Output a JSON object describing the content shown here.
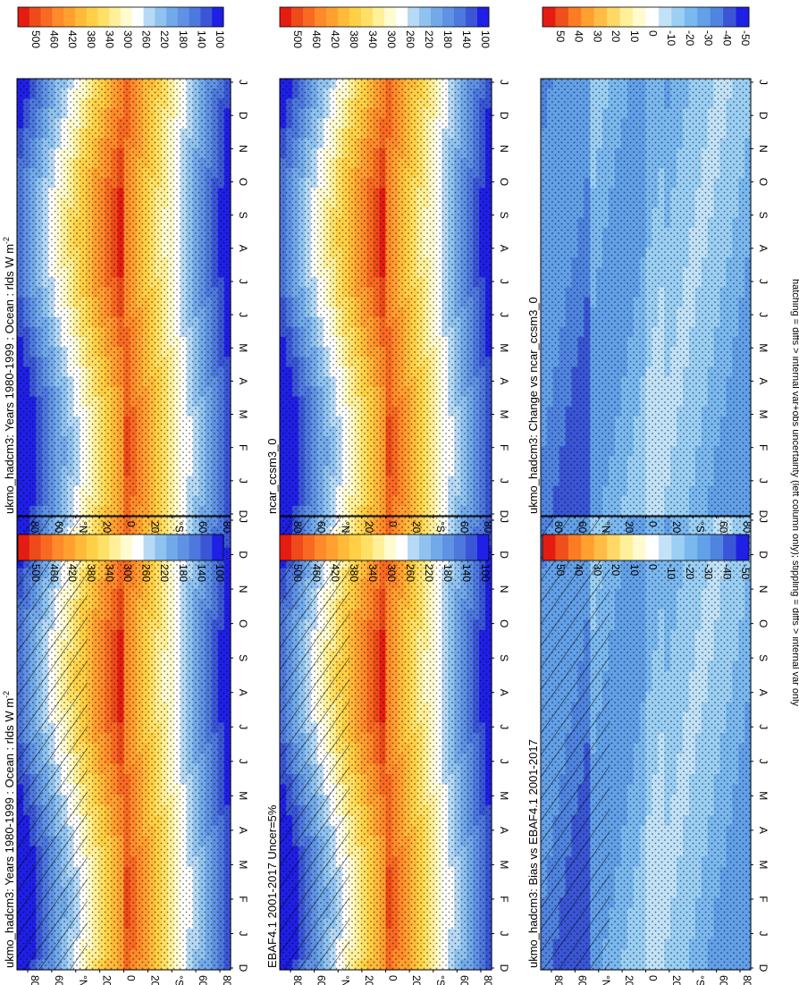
{
  "figure": {
    "footnote": "hatching = diffs > internal var+obs uncertainty (left column only); stippling = diffs > internal var only"
  },
  "palettes": {
    "abs": [
      "#1f1fe6",
      "#3a56d6",
      "#4d78dd",
      "#5f92e3",
      "#72a9e9",
      "#8fc2ef",
      "#b6d9f5",
      "#ffffff",
      "#fffbd0",
      "#fff099",
      "#ffe066",
      "#ffd045",
      "#ffba3a",
      "#ffa030",
      "#ff8a2a",
      "#f86a22",
      "#ee4a1a",
      "#e51c12"
    ],
    "diff": [
      "#1f1fe6",
      "#3a56d6",
      "#4f84e0",
      "#62a0e8",
      "#7ab8ef",
      "#9bcff4",
      "#c2e2f8",
      "#ffffff",
      "#fffbd0",
      "#fff099",
      "#ffd866",
      "#ffbd45",
      "#ffa030",
      "#fb7c25",
      "#ef501b",
      "#e51c12"
    ]
  },
  "panels": [
    {
      "id": "model-2100-ish",
      "title": "ukmo_hadcm3: Years 1980-1999 : Ocean : rlds W m",
      "title_sup": "-2",
      "kind": "abs",
      "hatch": true,
      "colorbar_ticks": [
        "500",
        "460",
        "420",
        "380",
        "340",
        "300",
        "260",
        "220",
        "180",
        "140",
        "100"
      ]
    },
    {
      "id": "obs",
      "title": "EBAF4.1 2001-2017 Uncer=5%",
      "title_sup": "",
      "kind": "abs",
      "hatch": true,
      "colorbar_ticks": [
        "500",
        "460",
        "420",
        "380",
        "340",
        "300",
        "260",
        "220",
        "180",
        "140",
        "100"
      ]
    },
    {
      "id": "bias",
      "title": "ukmo_hadcm3: Bias vs EBAF4.1 2001-2017",
      "title_sup": "",
      "kind": "diff",
      "hatch": true,
      "colorbar_ticks": [
        "50",
        "40",
        "30",
        "20",
        "10",
        "0",
        "-10",
        "-20",
        "-30",
        "-40",
        "-50"
      ]
    },
    {
      "id": "model-rt",
      "title": "ukmo_hadcm3: Years 1980-1999 : Ocean : rlds W m",
      "title_sup": "-2",
      "kind": "abs",
      "hatch": false,
      "colorbar_ticks": [
        "500",
        "460",
        "420",
        "380",
        "340",
        "300",
        "260",
        "220",
        "180",
        "140",
        "100"
      ]
    },
    {
      "id": "ref-model",
      "title": "ncar_ccsm3_0",
      "title_sup": "",
      "kind": "abs",
      "hatch": false,
      "colorbar_ticks": [
        "500",
        "460",
        "420",
        "380",
        "340",
        "300",
        "260",
        "220",
        "180",
        "140",
        "100"
      ]
    },
    {
      "id": "change",
      "title": "ukmo_hadcm3: Change vs ncar_ccsm3_0",
      "title_sup": "",
      "kind": "diff",
      "hatch": false,
      "colorbar_ticks": [
        "50",
        "40",
        "30",
        "20",
        "10",
        "0",
        "-10",
        "-20",
        "-30",
        "-40",
        "-50"
      ]
    }
  ],
  "axes": {
    "lat_ticks": [
      "80",
      "60",
      "°N",
      "20",
      "0",
      "20",
      "°S",
      "60",
      "80"
    ],
    "month_ticks": [
      "D",
      "J",
      "F",
      "M",
      "A",
      "M",
      "J",
      "J",
      "A",
      "S",
      "O",
      "N",
      "D",
      "J"
    ]
  },
  "chart_data": [
    {
      "type": "heatmap",
      "title": "ukmo_hadcm3: Years 1980-1999 : Ocean : rlds W m-2",
      "x": [
        "D",
        "J",
        "F",
        "M",
        "A",
        "M",
        "J",
        "J",
        "A",
        "S",
        "O",
        "N",
        "D",
        "J"
      ],
      "y": [
        "80",
        "60",
        "°N",
        "20",
        "0",
        "20",
        "°S",
        "60",
        "80"
      ],
      "colorbar": [
        500,
        460,
        420,
        380,
        340,
        300,
        260,
        220,
        180,
        140,
        100
      ],
      "note": "column 1"
    },
    {
      "type": "heatmap",
      "title": "EBAF4.1 2001-2017 Uncer=5%",
      "x": [
        "D",
        "J",
        "F",
        "M",
        "A",
        "M",
        "J",
        "J",
        "A",
        "S",
        "O",
        "N",
        "D",
        "J"
      ],
      "y": [
        "80",
        "60",
        "°N",
        "20",
        "0",
        "20",
        "°S",
        "60",
        "80"
      ],
      "colorbar": [
        500,
        460,
        420,
        380,
        340,
        300,
        260,
        220,
        180,
        140,
        100
      ]
    },
    {
      "type": "heatmap",
      "title": "ukmo_hadcm3: Bias vs EBAF4.1 2001-2017",
      "x": [
        "D",
        "J",
        "F",
        "M",
        "A",
        "M",
        "J",
        "J",
        "A",
        "S",
        "O",
        "N",
        "D",
        "J"
      ],
      "y": [
        "80",
        "60",
        "°N",
        "20",
        "0",
        "20",
        "°S",
        "60",
        "80"
      ],
      "colorbar": [
        50,
        40,
        30,
        20,
        10,
        0,
        -10,
        -20,
        -30,
        -40,
        -50
      ]
    },
    {
      "type": "heatmap",
      "title": "ukmo_hadcm3: Years 1980-1999 : Ocean : rlds W m-2",
      "x": [
        "D",
        "J",
        "F",
        "M",
        "A",
        "M",
        "J",
        "J",
        "A",
        "S",
        "O",
        "N",
        "D",
        "J"
      ],
      "y": [
        "80",
        "60",
        "°N",
        "20",
        "0",
        "20",
        "°S",
        "60",
        "80"
      ],
      "colorbar": [
        500,
        460,
        420,
        380,
        340,
        300,
        260,
        220,
        180,
        140,
        100
      ],
      "note": "column 2"
    },
    {
      "type": "heatmap",
      "title": "ncar_ccsm3_0",
      "x": [
        "D",
        "J",
        "F",
        "M",
        "A",
        "M",
        "J",
        "J",
        "A",
        "S",
        "O",
        "N",
        "D",
        "J"
      ],
      "y": [
        "80",
        "60",
        "°N",
        "20",
        "0",
        "20",
        "°S",
        "60",
        "80"
      ],
      "colorbar": [
        500,
        460,
        420,
        380,
        340,
        300,
        260,
        220,
        180,
        140,
        100
      ]
    },
    {
      "type": "heatmap",
      "title": "ukmo_hadcm3: Change vs ncar_ccsm3_0",
      "x": [
        "D",
        "J",
        "F",
        "M",
        "A",
        "M",
        "J",
        "J",
        "A",
        "S",
        "O",
        "N",
        "D",
        "J"
      ],
      "y": [
        "80",
        "60",
        "°N",
        "20",
        "0",
        "20",
        "°S",
        "60",
        "80"
      ],
      "colorbar": [
        50,
        40,
        30,
        20,
        10,
        0,
        -10,
        -20,
        -30,
        -40,
        -50
      ]
    }
  ]
}
